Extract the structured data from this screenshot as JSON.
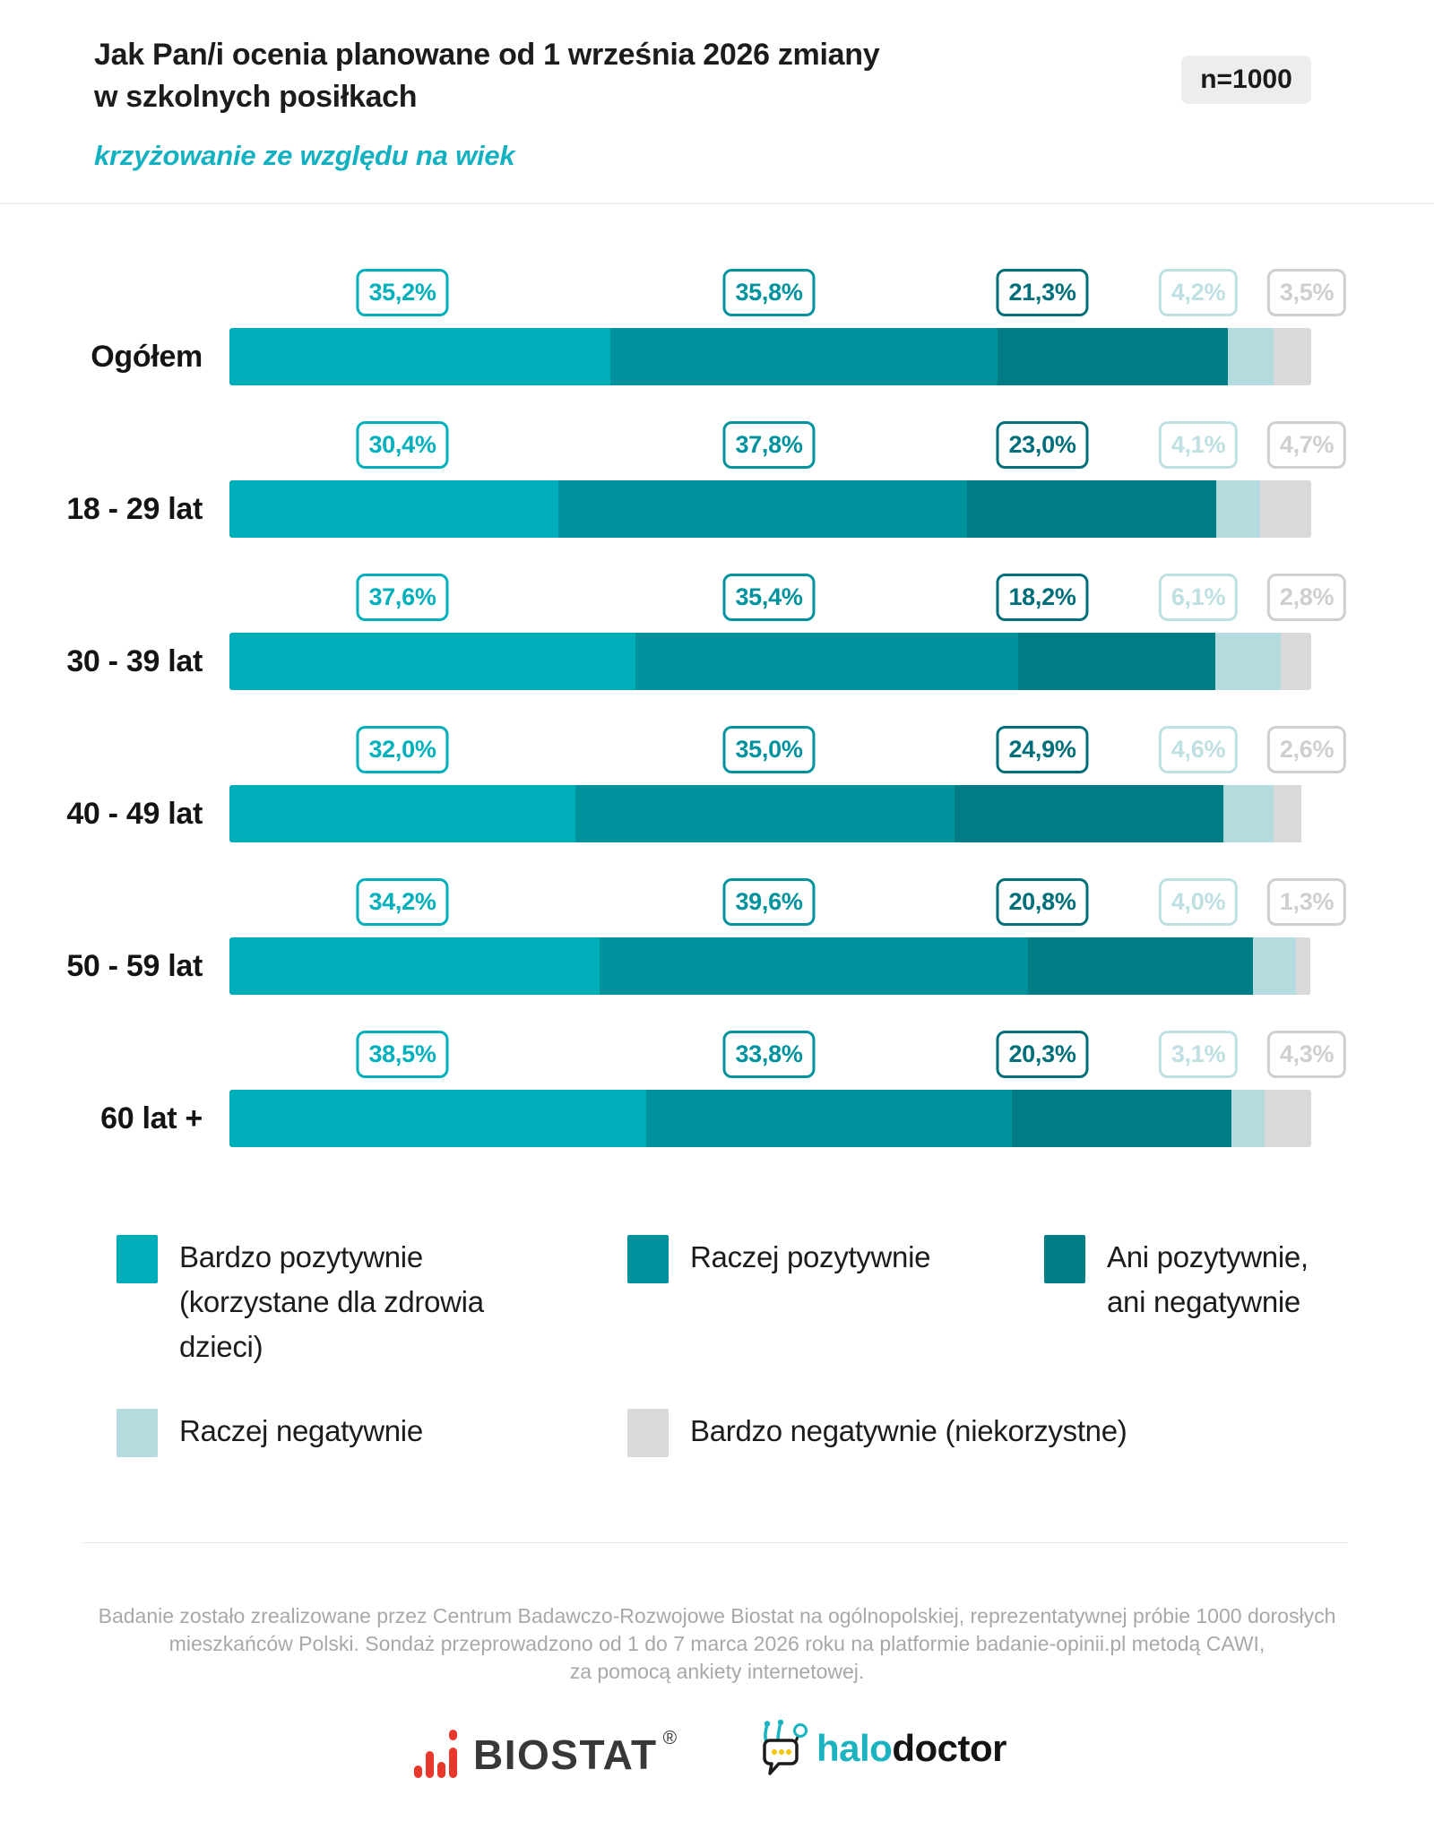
{
  "header": {
    "title_line1": "Jak Pan/i ocenia planowane od 1 września 2026 zmiany",
    "title_line2": "w szkolnych posiłkach",
    "subtitle": "krzyżowanie ze względu na wiek",
    "sample_badge": "n=1000"
  },
  "chart_data": {
    "type": "bar",
    "orientation": "horizontal",
    "stacked": true,
    "unit": "%",
    "xlim": [
      0,
      100
    ],
    "title": "Jak Pan/i ocenia planowane od 1 września 2026 zmiany w szkolnych posiłkach",
    "subtitle": "krzyżowanie ze względu na wiek",
    "sample_size": "n=1000",
    "categories": [
      "Ogółem",
      "18 - 29 lat",
      "30 - 39 lat",
      "40 - 49 lat",
      "50 - 59 lat",
      "60 lat +"
    ],
    "series": [
      {
        "name": "Bardzo pozytywnie (korzystane dla zdrowia dzieci)",
        "color": "#00aeba",
        "values": [
          35.2,
          30.4,
          37.6,
          32.0,
          34.2,
          38.5
        ]
      },
      {
        "name": "Raczej pozytywnie",
        "color": "#00939e",
        "values": [
          35.8,
          37.8,
          35.4,
          35.0,
          39.6,
          33.8
        ]
      },
      {
        "name": "Ani pozytywnie, ani negatywnie",
        "color": "#007c85",
        "values": [
          21.3,
          23.0,
          18.2,
          24.9,
          20.8,
          20.3
        ]
      },
      {
        "name": "Raczej negatywnie",
        "color": "#b4dbde",
        "values": [
          4.2,
          4.1,
          6.1,
          4.6,
          4.0,
          3.1
        ]
      },
      {
        "name": "Bardzo negatywnie (niekorzystne)",
        "color": "#d9d9d9",
        "values": [
          3.5,
          4.7,
          2.8,
          2.6,
          1.3,
          4.3
        ]
      }
    ],
    "badge_colors": [
      "#00b0bc",
      "#00939e",
      "#006f7a",
      "#bfe0e3",
      "#cfcfcf"
    ],
    "legend_position": "bottom"
  },
  "legend": {
    "items": [
      {
        "label": "Bardzo pozytywnie\n(korzystane dla zdrowia\ndzieci)",
        "color": "#00aeba"
      },
      {
        "label": "Raczej pozytywnie",
        "color": "#00939e"
      },
      {
        "label": "Ani pozytywnie,\nani negatywnie",
        "color": "#007c85"
      },
      {
        "label": "Raczej negatywnie",
        "color": "#b4dbde"
      },
      {
        "label": "Bardzo negatywnie (niekorzystne)",
        "color": "#d9d9d9"
      }
    ]
  },
  "footer": {
    "lines": [
      "Badanie zostało zrealizowane przez Centrum Badawczo-Rozwojowe Biostat na ogólnopolskiej, reprezentatywnej próbie 1000 dorosłych",
      "mieszkańców Polski. Sondaż przeprowadzono od 1 do 7 marca 2026 roku na platformie badanie-opinii.pl metodą CAWI,",
      "za pomocą ankiety internetowej."
    ]
  },
  "logos": {
    "biostat_text": "BIOSTAT",
    "biostat_reg": "®",
    "biostat_red": "#e8372b",
    "halodoctor_halo": "halo",
    "halodoctor_doctor": "doctor",
    "halodoctor_teal": "#1ab3c0",
    "halodoctor_yellow": "#f5c400"
  }
}
